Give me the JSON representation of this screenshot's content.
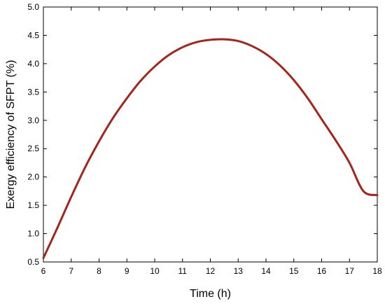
{
  "chart_data": {
    "type": "line",
    "title": "",
    "xlabel": "Time (h)",
    "ylabel": "Exergy efficiency of SFPT (%)",
    "xlim": [
      6,
      18
    ],
    "ylim": [
      0.5,
      5.0
    ],
    "x_ticks": [
      6,
      7,
      8,
      9,
      10,
      11,
      12,
      13,
      14,
      15,
      16,
      17,
      18
    ],
    "y_ticks": [
      0.5,
      1.0,
      1.5,
      2.0,
      2.5,
      3.0,
      3.5,
      4.0,
      4.5,
      5.0
    ],
    "x_tick_labels": [
      "6",
      "7",
      "8",
      "9",
      "10",
      "11",
      "12",
      "13",
      "14",
      "15",
      "16",
      "17",
      "18"
    ],
    "y_tick_labels": [
      "0.5",
      "1.0",
      "1.5",
      "2.0",
      "2.5",
      "3.0",
      "3.5",
      "4.0",
      "4.5",
      "5.0"
    ],
    "grid": false,
    "series": [
      {
        "color": "#a3261c",
        "x": [
          6,
          6.5,
          7,
          7.5,
          8,
          8.5,
          9,
          9.5,
          10,
          10.5,
          11,
          11.5,
          12,
          12.5,
          13,
          13.5,
          14,
          14.5,
          15,
          15.5,
          16,
          16.5,
          17,
          17.5,
          18
        ],
        "y": [
          0.57,
          1.1,
          1.65,
          2.17,
          2.63,
          3.04,
          3.39,
          3.7,
          3.95,
          4.15,
          4.29,
          4.38,
          4.42,
          4.43,
          4.4,
          4.31,
          4.17,
          3.97,
          3.71,
          3.39,
          3.02,
          2.65,
          2.25,
          1.75,
          1.68
        ]
      }
    ]
  }
}
